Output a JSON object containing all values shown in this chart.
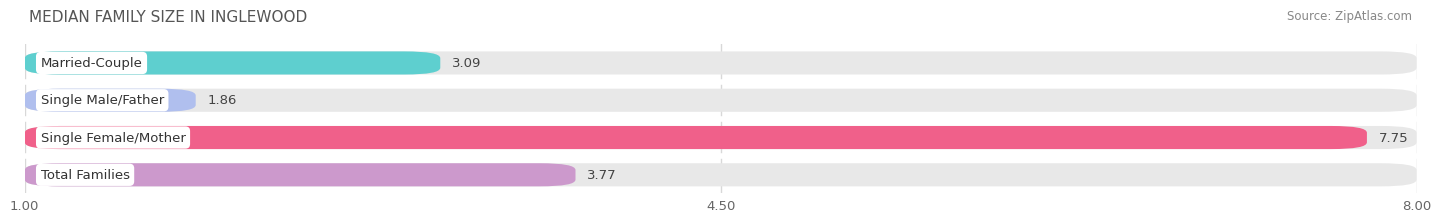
{
  "title": "MEDIAN FAMILY SIZE IN INGLEWOOD",
  "source": "Source: ZipAtlas.com",
  "categories": [
    "Married-Couple",
    "Single Male/Father",
    "Single Female/Mother",
    "Total Families"
  ],
  "values": [
    3.09,
    1.86,
    7.75,
    3.77
  ],
  "bar_colors": [
    "#5ecfcf",
    "#b0bfee",
    "#f0608a",
    "#cc99cc"
  ],
  "xlim": [
    1.0,
    8.0
  ],
  "xticks": [
    1.0,
    4.5,
    8.0
  ],
  "bar_height": 0.62,
  "background_color": "#ffffff",
  "bar_bg_color": "#e8e8e8",
  "grid_color": "#d8d8d8",
  "title_fontsize": 11,
  "label_fontsize": 9.5,
  "value_fontsize": 9.5,
  "tick_fontsize": 9.5,
  "source_fontsize": 8.5
}
